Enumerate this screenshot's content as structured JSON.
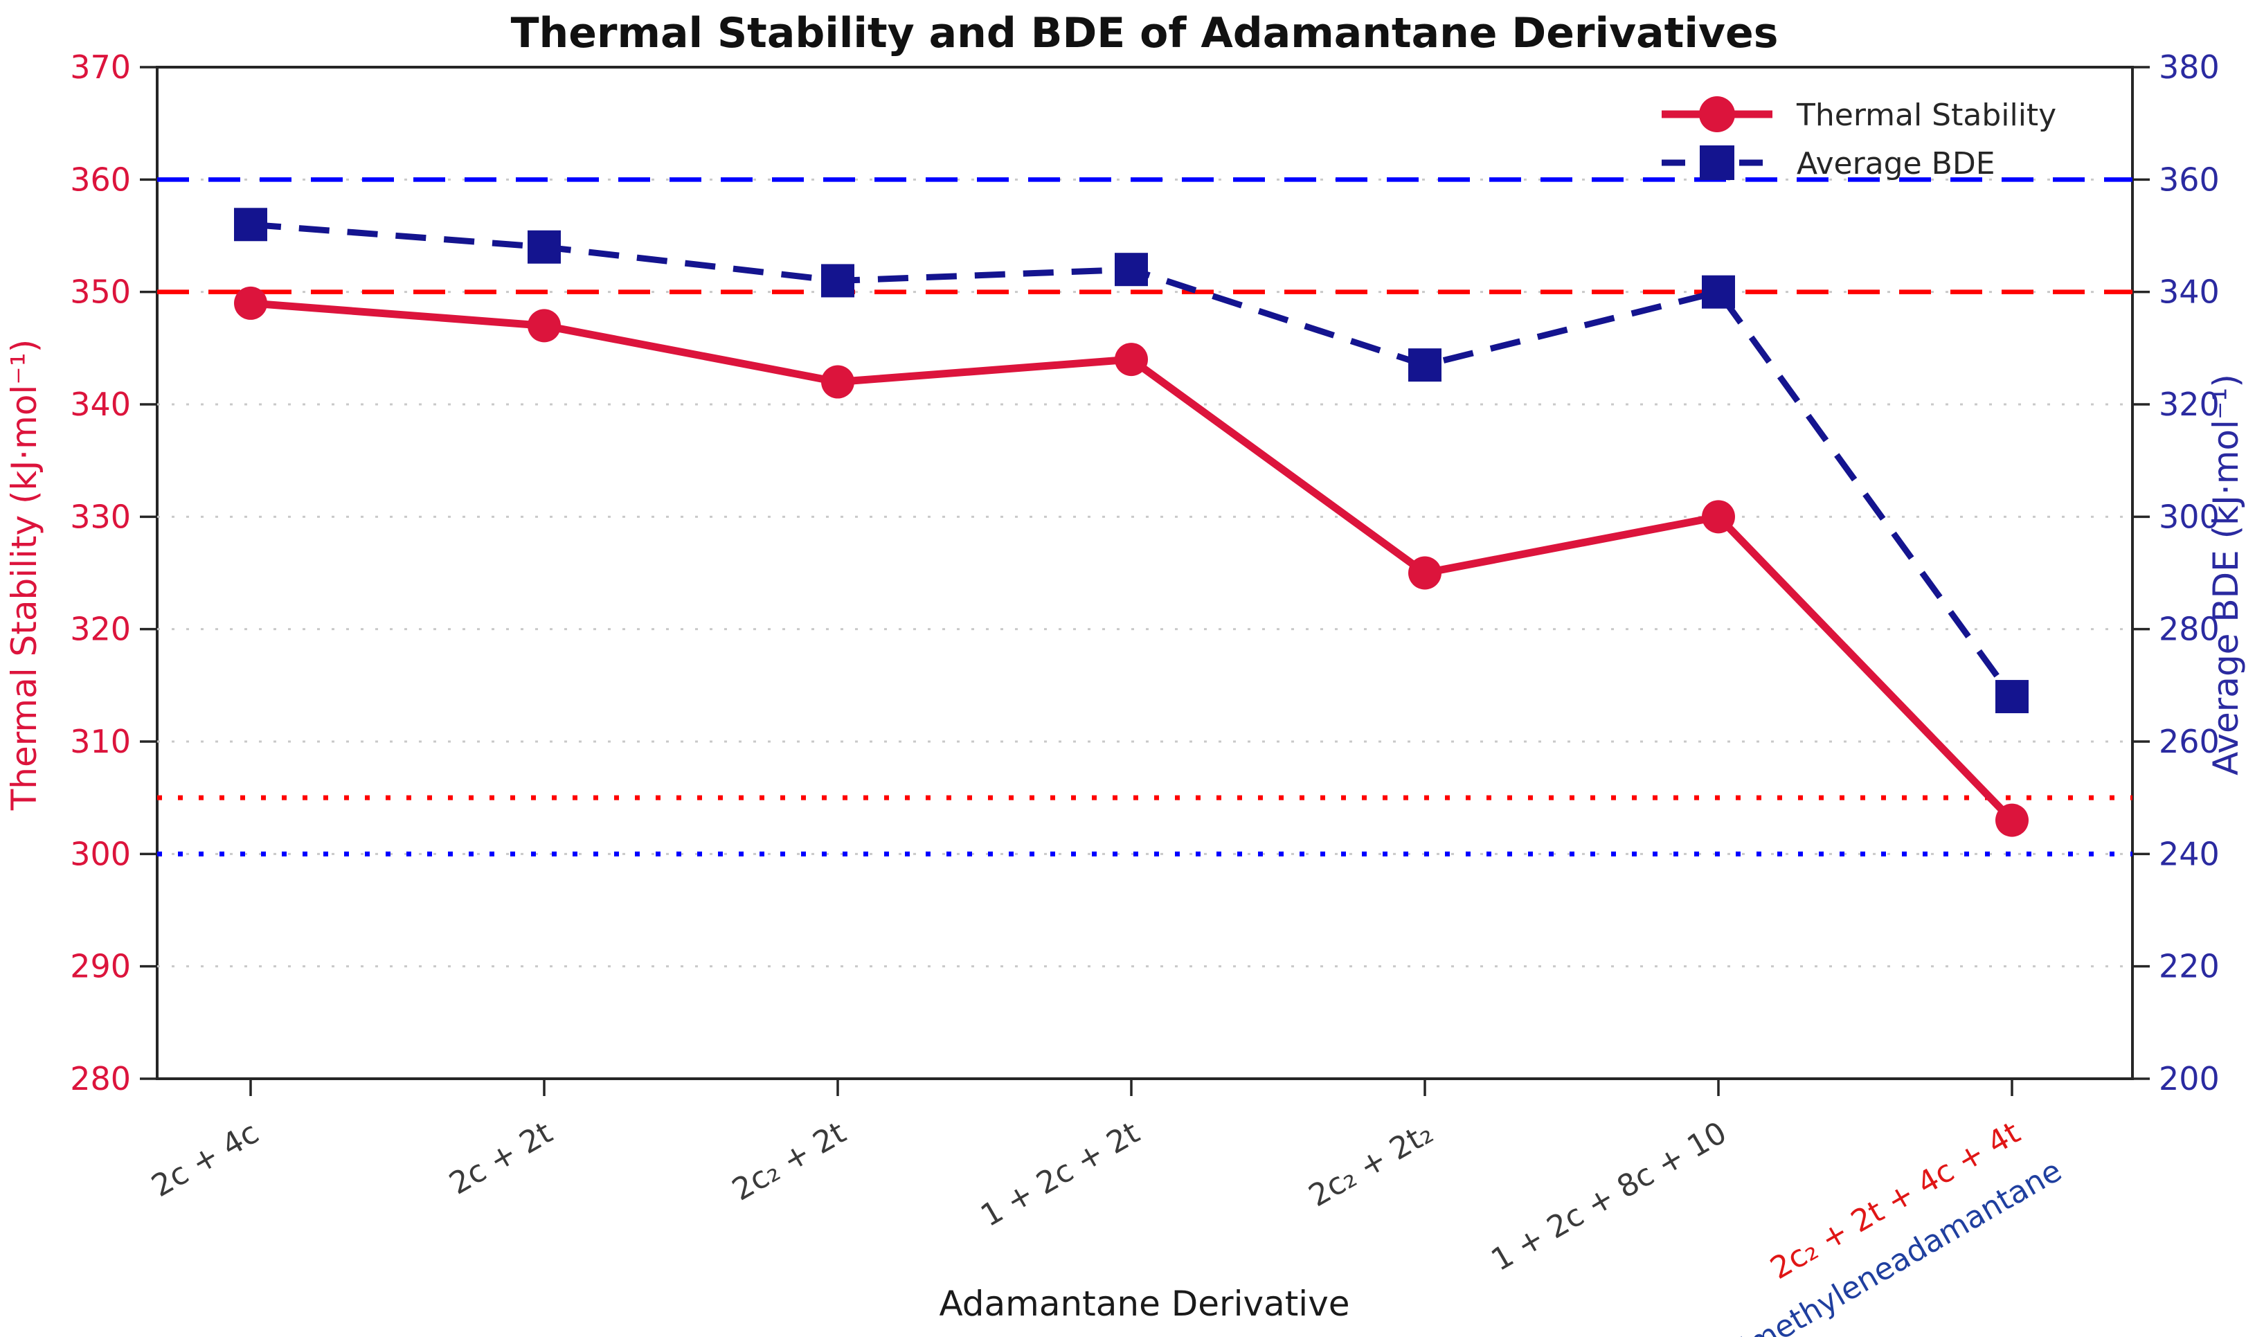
{
  "chart_data": {
    "type": "line",
    "title": "Thermal Stability and BDE of Adamantane Derivatives",
    "xlabel": "Adamantane Derivative",
    "categories": [
      {
        "label": "2c + 4c",
        "color": "#3a3a3a"
      },
      {
        "label": "2c + 2t",
        "color": "#3a3a3a"
      },
      {
        "label": "2c₂ + 2t",
        "color": "#3a3a3a"
      },
      {
        "label": "1 + 2c + 2t",
        "color": "#3a3a3a"
      },
      {
        "label": "2c₂ + 2t₂",
        "color": "#3a3a3a"
      },
      {
        "label": "1 + 2c + 8c + 10",
        "color": "#3a3a3a"
      },
      {
        "label": "2c₂ + 2t + 4c + 4t",
        "color": "#e01616",
        "label2": "dimethyleneadamantane",
        "color2": "#1f3f9f"
      }
    ],
    "series": [
      {
        "name": "Thermal Stability",
        "axis": "left",
        "color": "#dc143c",
        "marker": "circle",
        "line_style": "solid",
        "values": [
          349,
          347,
          342,
          344,
          325,
          330,
          303
        ]
      },
      {
        "name": "Average BDE",
        "axis": "right",
        "color": "#14148f",
        "marker": "square",
        "line_style": "dashed",
        "values": [
          352,
          348,
          342,
          344,
          327,
          340,
          268
        ]
      }
    ],
    "axes": {
      "left": {
        "label": "Thermal Stability (kJ·mol⁻¹)",
        "color": "#dc143c",
        "min": 280,
        "max": 370,
        "ticks": [
          280,
          290,
          300,
          310,
          320,
          330,
          340,
          350,
          360,
          370
        ]
      },
      "right": {
        "label": "Average BDE (kJ·mol⁻¹)",
        "color": "#2a2aa0",
        "min": 200,
        "max": 380,
        "ticks": [
          200,
          220,
          240,
          260,
          280,
          300,
          320,
          340,
          360,
          380
        ]
      },
      "x": {
        "label": "Adamantane Derivative",
        "color": "#1a1a1a"
      }
    },
    "reference_lines": [
      {
        "axis": "left",
        "value": 360,
        "color": "#0000ff",
        "style": "dashed"
      },
      {
        "axis": "left",
        "value": 350,
        "color": "#ff0000",
        "style": "dashed"
      },
      {
        "axis": "left",
        "value": 305,
        "color": "#ff0000",
        "style": "dotted"
      },
      {
        "axis": "left",
        "value": 300,
        "color": "#0000ff",
        "style": "dotted"
      }
    ],
    "grid": {
      "show": true,
      "color": "#c9c9c9",
      "style": "dotted",
      "values": [
        290,
        300,
        310,
        320,
        330,
        340,
        350,
        360
      ]
    },
    "legend": {
      "position": "upper-right",
      "frame": false,
      "entries": [
        {
          "label": "Thermal Stability",
          "color": "#dc143c",
          "marker": "circle",
          "line_style": "solid"
        },
        {
          "label": "Average BDE",
          "color": "#14148f",
          "marker": "square",
          "line_style": "dashed"
        }
      ]
    },
    "spine_color": "#262626",
    "text_color": "#262626"
  }
}
